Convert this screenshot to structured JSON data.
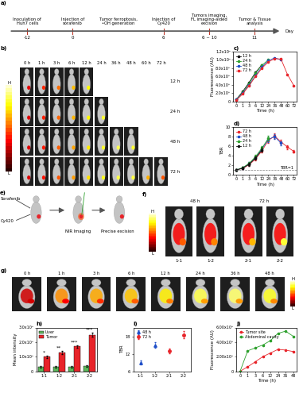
{
  "scale": {
    "high": "H",
    "low": "L"
  },
  "timeline": {
    "title": "a)",
    "unit": "Day",
    "events": [
      {
        "day": "-12",
        "text": "Inoculation of\nHuh7 cells"
      },
      {
        "day": "0",
        "text": "Injection of\nsorafenib"
      },
      {
        "day": null,
        "text": "Tumor ferroptosis,\n•OH generation"
      },
      {
        "day": "6",
        "text": "Injection of\nCy420"
      },
      {
        "day": "6 ~ 10",
        "text": "Tumors imaging,\nFL imaging-aided\nexcision"
      },
      {
        "day": "11",
        "text": "Tumor & Tissue\nanalysis"
      }
    ]
  },
  "imaging": {
    "title": "b)",
    "columns": [
      "0 h",
      "1 h",
      "3 h",
      "6 h",
      "12 h",
      "24 h",
      "36 h",
      "48 h",
      "60 h",
      "72 h"
    ],
    "rows": [
      "12 h",
      "24 h",
      "48 h",
      "72 h"
    ]
  },
  "surgery": {
    "title": "e)",
    "drug": "Sorafenib",
    "probe": "Cy420",
    "imaging": "NIR Imaging",
    "excision": "Precise excision"
  },
  "excision_images": {
    "title": "f)",
    "groups": [
      "48 h",
      "72 h"
    ],
    "mice": [
      "1-1",
      "1-2",
      "2-1",
      "2-2"
    ]
  },
  "abdominal_images": {
    "title": "g)",
    "columns": [
      "0 h",
      "1 h",
      "3 h",
      "6 h",
      "12 h",
      "24 h",
      "36 h",
      "48 h"
    ]
  },
  "chart_data": [
    {
      "type": "line",
      "title": "c)",
      "x_label": "Time (h)",
      "y_label": "Fluorescence (AU)",
      "categories": [
        "0",
        "1",
        "3",
        "6",
        "12",
        "24",
        "36",
        "48",
        "60",
        "72"
      ],
      "series": [
        {
          "name": "12 h",
          "color": "#111111",
          "marker": "circle",
          "values": [
            50000000,
            240000000,
            460000000,
            700000000,
            880000000,
            null,
            null,
            null,
            null,
            null
          ]
        },
        {
          "name": "24 h",
          "color": "#2ca02c",
          "marker": "circle",
          "values": [
            40000000,
            220000000,
            430000000,
            680000000,
            870000000,
            1000000000,
            null,
            null,
            null,
            null
          ]
        },
        {
          "name": "48 h",
          "color": "#1f4fc8",
          "marker": "circle",
          "values": [
            40000000,
            200000000,
            400000000,
            620000000,
            830000000,
            980000000,
            1050000000,
            1000000000,
            null,
            null
          ]
        },
        {
          "name": "72 h",
          "color": "#e8242a",
          "marker": "circle",
          "values": [
            30000000,
            180000000,
            380000000,
            600000000,
            800000000,
            950000000,
            1030000000,
            1020000000,
            650000000,
            380000000
          ]
        }
      ],
      "ylim": [
        0,
        1200000000
      ],
      "yticks": [
        0,
        {
          "value": 200000000,
          "label": "2.0x10⁸"
        },
        {
          "value": 400000000,
          "label": "4.0x10⁸"
        },
        {
          "value": 600000000,
          "label": "6.0x10⁸"
        },
        {
          "value": 800000000,
          "label": "8.0x10⁸"
        },
        {
          "value": 1000000000,
          "label": "1.0x10⁹"
        },
        {
          "value": 1200000000,
          "label": "1.2x10⁹"
        }
      ],
      "legend": "upper left"
    },
    {
      "type": "line",
      "title": "d)",
      "x_label": "Time (h)",
      "y_label": "TBR",
      "categories": [
        "0",
        "1",
        "3",
        "6",
        "12",
        "24",
        "36",
        "48",
        "60",
        "72"
      ],
      "series": [
        {
          "name": "72 h",
          "color": "#e8242a",
          "marker": "circle",
          "values": [
            1.0,
            1.3,
            2.1,
            3.3,
            5.0,
            7.2,
            8.1,
            6.9,
            5.8,
            4.9
          ],
          "errors": [
            0.1,
            0.2,
            0.3,
            0.3,
            0.4,
            0.5,
            0.5,
            0.4,
            0.4,
            0.3
          ]
        },
        {
          "name": "48 h",
          "color": "#1f4fc8",
          "marker": "circle",
          "values": [
            1.0,
            1.4,
            2.3,
            3.6,
            5.4,
            7.4,
            8.0,
            6.6,
            null,
            null
          ],
          "errors": [
            0.1,
            0.2,
            0.3,
            0.3,
            0.4,
            0.5,
            0.5,
            0.4,
            null,
            null
          ]
        },
        {
          "name": "24 h",
          "color": "#2ca02c",
          "marker": "circle",
          "values": [
            1.0,
            1.5,
            2.4,
            3.8,
            5.6,
            7.6,
            null,
            null,
            null,
            null
          ],
          "errors": [
            0.1,
            0.2,
            0.3,
            0.3,
            0.4,
            0.5,
            null,
            null,
            null,
            null
          ]
        },
        {
          "name": "12 h",
          "color": "#111111",
          "marker": "circle",
          "values": [
            1.0,
            1.4,
            2.2,
            3.5,
            5.2,
            null,
            null,
            null,
            null,
            null
          ],
          "errors": [
            0.1,
            0.2,
            0.3,
            0.3,
            0.4,
            null,
            null,
            null,
            null,
            null
          ]
        }
      ],
      "reference": {
        "value": 1,
        "label": "TBR=1"
      },
      "ylim": [
        0,
        10
      ],
      "yticks": [
        0,
        2,
        4,
        6,
        8,
        10
      ],
      "legend": "upper left"
    },
    {
      "type": "bar",
      "title": "h)",
      "y_label": "Mean intensity",
      "categories": [
        "1-1",
        "1-2",
        "2-1",
        "2-2"
      ],
      "series": [
        {
          "name": "Liver",
          "color": "#5cb85c",
          "values": [
            30000000,
            30000000,
            32000000,
            35000000
          ],
          "errors": [
            5000000,
            5000000,
            5000000,
            6000000
          ]
        },
        {
          "name": "Tumor",
          "color": "#e8242a",
          "values": [
            100000000,
            130000000,
            170000000,
            250000000
          ],
          "errors": [
            8000000,
            10000000,
            10000000,
            15000000
          ]
        }
      ],
      "annotations": [
        "*",
        "**",
        "***",
        "***"
      ],
      "ylim": [
        0,
        300000000
      ],
      "yticks": [
        0,
        {
          "value": 100000000,
          "label": "1.0x10⁸"
        },
        {
          "value": 200000000,
          "label": "2.0x10⁸"
        },
        {
          "value": 300000000,
          "label": "3.0x10⁸"
        }
      ],
      "legend": "upper left"
    },
    {
      "type": "scatter",
      "title": "i)",
      "y_label": "TBR",
      "categories": [
        "1-1",
        "1-2",
        "2-1",
        "2-2"
      ],
      "series": [
        {
          "name": "48 h",
          "color": "#1f4fc8",
          "marker": "triangle",
          "values": [
            9.0,
            15.0,
            null,
            null
          ],
          "errors": [
            0.8,
            1.0,
            null,
            null
          ]
        },
        {
          "name": "72 h",
          "color": "#e8242a",
          "marker": "circle",
          "values": [
            null,
            null,
            13.0,
            18.5
          ],
          "errors": [
            null,
            null,
            0.8,
            1.2
          ]
        }
      ],
      "ylim": [
        6,
        21
      ],
      "yticks": [
        6,
        12,
        18
      ],
      "legend": "upper left"
    },
    {
      "type": "line",
      "title": "j)",
      "x_label": "Time (h)",
      "y_label": "Fluorescence (AU)",
      "categories": [
        "0",
        "1",
        "3",
        "6",
        "12",
        "24",
        "36",
        "48"
      ],
      "series": [
        {
          "name": "Tumor site",
          "color": "#e8242a",
          "marker": "circle",
          "values": [
            0,
            60000000,
            130000000,
            200000000,
            250000000,
            300000000,
            290000000,
            270000000
          ]
        },
        {
          "name": "Abdominal cavity",
          "color": "#2ca02c",
          "marker": "circle",
          "values": [
            0,
            280000000,
            320000000,
            360000000,
            420000000,
            520000000,
            550000000,
            480000000
          ]
        }
      ],
      "ylim": [
        0,
        600000000
      ],
      "yticks": [
        0,
        {
          "value": 200000000,
          "label": "2.00x10⁸"
        },
        {
          "value": 400000000,
          "label": "4.00x10⁸"
        },
        {
          "value": 600000000,
          "label": "6.00x10⁸"
        }
      ],
      "legend": "upper left"
    }
  ]
}
